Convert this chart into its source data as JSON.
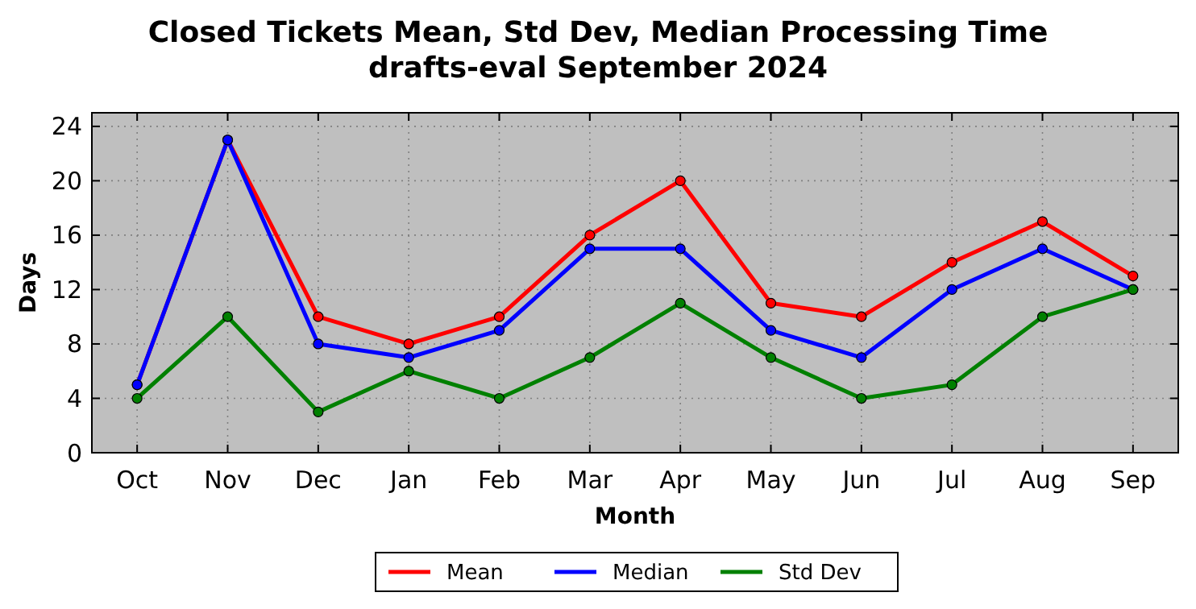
{
  "chart_data": {
    "type": "line",
    "title": "Closed Tickets Mean, Std Dev, Median Processing Time",
    "subtitle": "drafts-eval September 2024",
    "xlabel": "Month",
    "ylabel": "Days",
    "categories": [
      "Oct",
      "Nov",
      "Dec",
      "Jan",
      "Feb",
      "Mar",
      "Apr",
      "May",
      "Jun",
      "Jul",
      "Aug",
      "Sep"
    ],
    "series": [
      {
        "name": "Mean",
        "color": "#ff0000",
        "values": [
          5,
          23,
          10,
          8,
          10,
          16,
          20,
          11,
          10,
          14,
          17,
          13
        ]
      },
      {
        "name": "Median",
        "color": "#0000ff",
        "values": [
          5,
          23,
          8,
          7,
          9,
          15,
          15,
          9,
          7,
          12,
          15,
          12
        ]
      },
      {
        "name": "Std Dev",
        "color": "#008000",
        "values": [
          4,
          10,
          3,
          6,
          4,
          7,
          11,
          7,
          4,
          5,
          10,
          12
        ]
      }
    ],
    "ylim": [
      0,
      25
    ],
    "yticks": [
      0,
      4,
      8,
      12,
      16,
      20,
      24
    ],
    "grid": true,
    "legend": "bottom",
    "marker": "circle",
    "line_style": "solid"
  }
}
